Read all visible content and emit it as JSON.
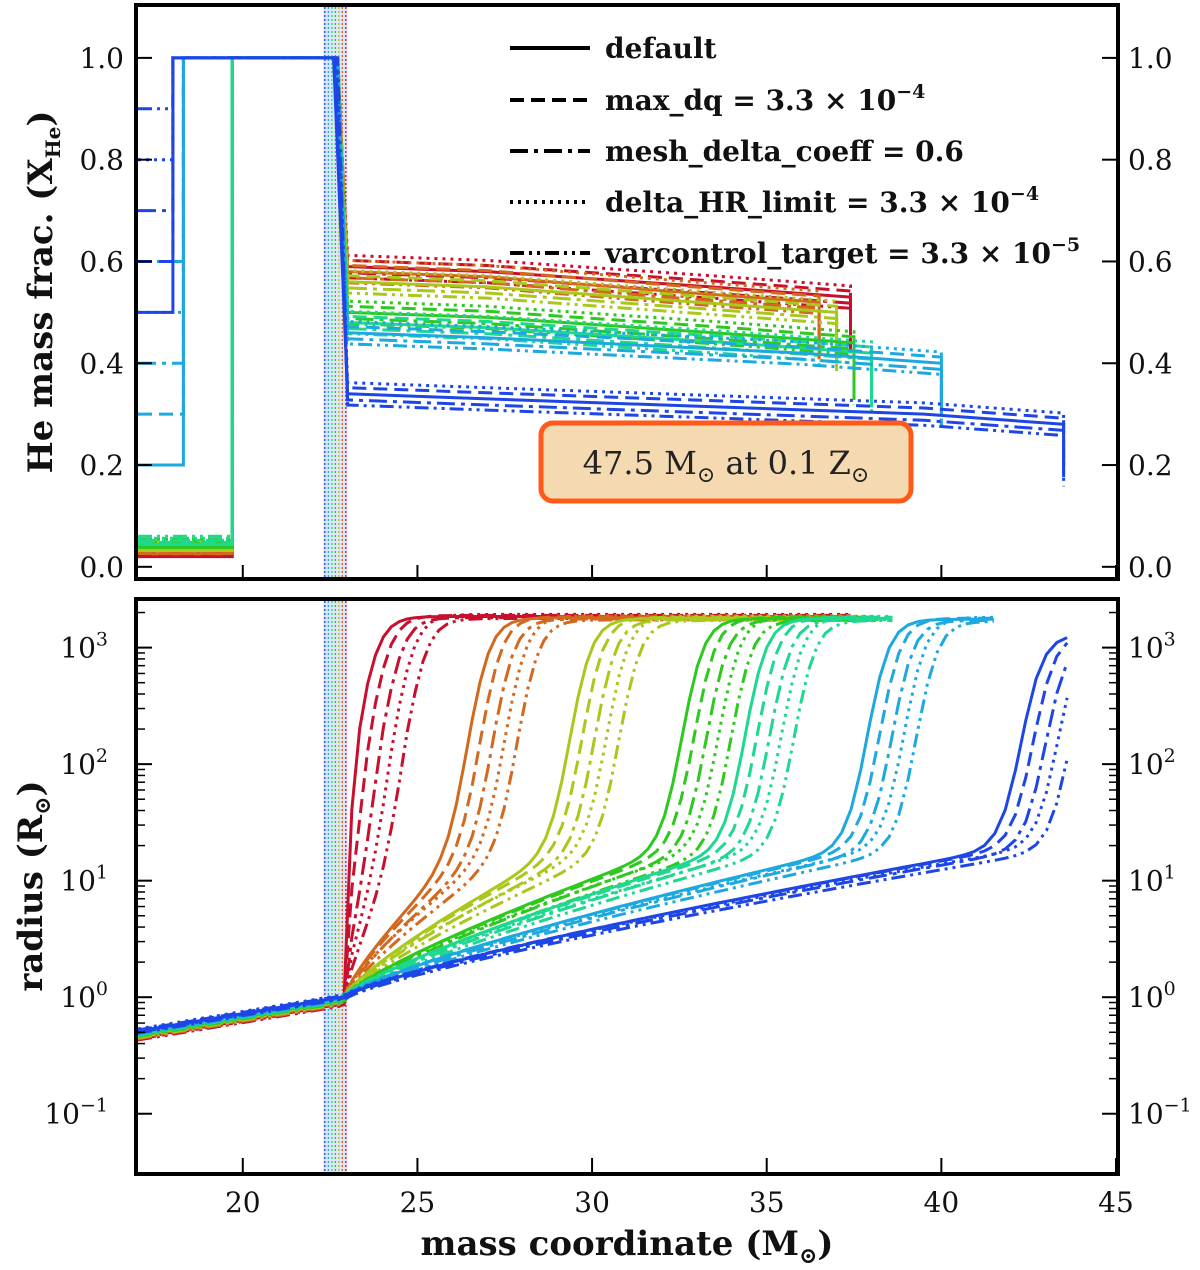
{
  "chart_data": [
    {
      "type": "line",
      "panel": "top",
      "ylabel": "He mass frac. (X",
      "ylabel_sub": "He",
      "ylabel_close": ")",
      "xlim": [
        17,
        45
      ],
      "ylim": [
        -0.02,
        1.1
      ],
      "yticks": [
        0.0,
        0.2,
        0.4,
        0.6,
        0.8,
        1.0
      ],
      "ytick_labels": [
        "0.0",
        "0.2",
        "0.4",
        "0.6",
        "0.8",
        "1.0"
      ],
      "annotation": {
        "mass": "47.5 M",
        "sun": "⊙",
        "mid": " at 0.1 Z",
        "sun2": "⊙"
      },
      "legend": [
        {
          "label": "default",
          "style": "solid"
        },
        {
          "label": "max_dq = 3.3 × 10",
          "exp": "−4",
          "style": "dashed"
        },
        {
          "label": "mesh_delta_coeff = 0.6",
          "exp": "",
          "style": "dashdot"
        },
        {
          "label": "delta_HR_limit = 3.3 × 10",
          "exp": "−4",
          "style": "dotted"
        },
        {
          "label": "varcontrol_target = 3.3 × 10",
          "exp": "−5",
          "style": "dashdotdot"
        }
      ],
      "shaded_band_x": [
        22.3,
        23.0
      ]
    },
    {
      "type": "line",
      "panel": "bottom",
      "ylabel": "radius (R",
      "ylabel_sun": "⊙",
      "ylabel_close": ")",
      "xlabel": "mass coordinate (M",
      "xlabel_sun": "⊙",
      "xlabel_close": ")",
      "xlim": [
        17,
        45
      ],
      "xticks": [
        20,
        25,
        30,
        35,
        40,
        45
      ],
      "xtick_labels": [
        "20",
        "25",
        "30",
        "35",
        "40",
        "45"
      ],
      "yscale": "log",
      "ylim_log10": [
        -1.5,
        3.4
      ],
      "yticks_log10": [
        -1,
        0,
        1,
        2,
        3
      ],
      "ytick_labels": [
        {
          "base": "10",
          "exp": "−1"
        },
        {
          "base": "10",
          "exp": "0"
        },
        {
          "base": "10",
          "exp": "1"
        },
        {
          "base": "10",
          "exp": "2"
        },
        {
          "base": "10",
          "exp": "3"
        }
      ],
      "models": [
        {
          "color": "#c8102e",
          "he_core": 19.7,
          "he_env": 0.53,
          "env_end": 37.4,
          "rise_mass": 24.0,
          "r_max": 1850,
          "x_end": 37.4
        },
        {
          "color": "#d2691e",
          "he_core": 19.7,
          "he_env": 0.52,
          "env_end": 36.5,
          "rise_mass": 27.2,
          "r_max": 1800,
          "x_end": 37.5
        },
        {
          "color": "#a8c81c",
          "he_core": 19.7,
          "he_env": 0.5,
          "env_end": 37.0,
          "rise_mass": 30.1,
          "r_max": 1780,
          "x_end": 38.0
        },
        {
          "color": "#2ec81e",
          "he_core": 19.7,
          "he_env": 0.44,
          "env_end": 37.5,
          "rise_mass": 33.3,
          "r_max": 1780,
          "x_end": 38.2
        },
        {
          "color": "#1ed890",
          "he_core": 19.7,
          "he_env": 0.42,
          "env_end": 38.0,
          "rise_mass": 35.1,
          "r_max": 1780,
          "x_end": 38.6
        },
        {
          "color": "#1ea8e0",
          "he_core": 18.3,
          "he_env": 0.4,
          "env_end": 40.0,
          "rise_mass": 38.6,
          "r_max": 1750,
          "x_end": 41.5
        },
        {
          "color": "#1e46e6",
          "he_core": 18.0,
          "he_env": 0.28,
          "env_end": 43.5,
          "rise_mass": 43.0,
          "r_max": 1300,
          "x_end": 43.6
        }
      ]
    }
  ]
}
